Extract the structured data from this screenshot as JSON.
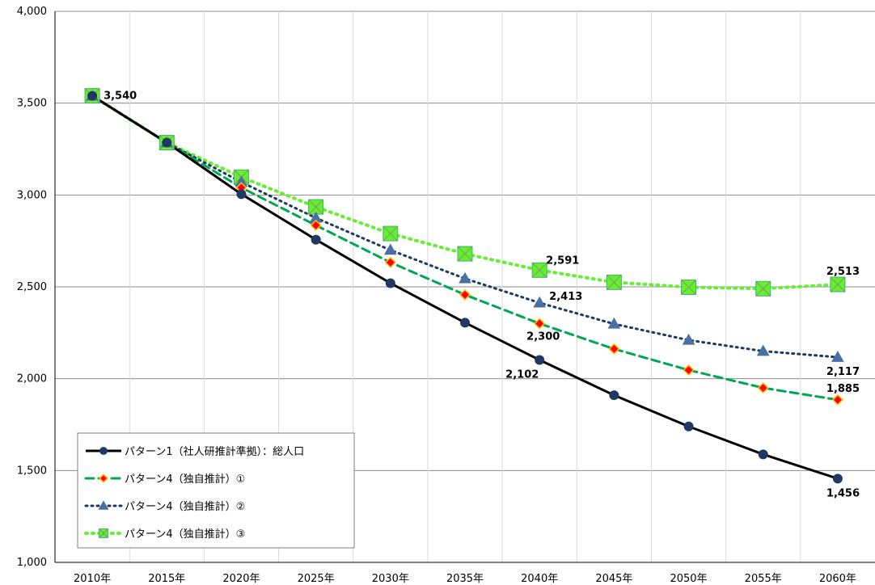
{
  "chart_data": {
    "type": "line",
    "x": [
      "2010年",
      "2015年",
      "2020年",
      "2025年",
      "2030年",
      "2035年",
      "2040年",
      "2045年",
      "2050年",
      "2055年",
      "2060年"
    ],
    "ylim": [
      1000,
      4000
    ],
    "yticks": [
      "1,000",
      "1,500",
      "2,000",
      "2,500",
      "3,000",
      "3,500",
      "4,000"
    ],
    "ytick_values": [
      1000,
      1500,
      2000,
      2500,
      3000,
      3500,
      4000
    ],
    "grid": true,
    "legend_position": "bottom-left",
    "series": [
      {
        "name": "パターン1（社人研推計準拠）：総人口",
        "color": "#000000",
        "marker_color": "#1f3864",
        "dash": "",
        "marker": "circle",
        "values": [
          3540,
          3285,
          3005,
          2757,
          2520,
          2305,
          2102,
          1910,
          1740,
          1588,
          1456
        ],
        "labels": [
          {
            "index": 0,
            "text": "3,540"
          },
          {
            "index": 6,
            "text": "2,102"
          },
          {
            "index": 10,
            "text": "1,456"
          }
        ]
      },
      {
        "name": "パターン4（独自推計）①",
        "color": "#00a651",
        "marker_color": "#ff0000",
        "marker_stroke": "#ffc000",
        "dash": "10,6",
        "marker": "diamond",
        "values": [
          3540,
          3285,
          3040,
          2835,
          2633,
          2457,
          2300,
          2162,
          2047,
          1950,
          1885
        ],
        "labels": [
          {
            "index": 6,
            "text": "2,300"
          },
          {
            "index": 10,
            "text": "1,885"
          }
        ]
      },
      {
        "name": "パターン4（独自推計）②",
        "color": "#1f3864",
        "marker_color": "#4a6fa5",
        "dash": "2,5",
        "marker": "triangle",
        "values": [
          3540,
          3285,
          3070,
          2875,
          2700,
          2545,
          2413,
          2298,
          2210,
          2150,
          2117
        ],
        "labels": [
          {
            "index": 6,
            "text": "2,413"
          },
          {
            "index": 10,
            "text": "2,117"
          }
        ]
      },
      {
        "name": "パターン4（独自推計）③",
        "color": "#66ee33",
        "marker_color": "#66ee33",
        "dash": "2,6",
        "marker": "square",
        "values": [
          3540,
          3285,
          3097,
          2935,
          2790,
          2680,
          2591,
          2525,
          2498,
          2490,
          2513
        ],
        "labels": [
          {
            "index": 6,
            "text": "2,591"
          },
          {
            "index": 10,
            "text": "2,513"
          }
        ]
      }
    ]
  }
}
